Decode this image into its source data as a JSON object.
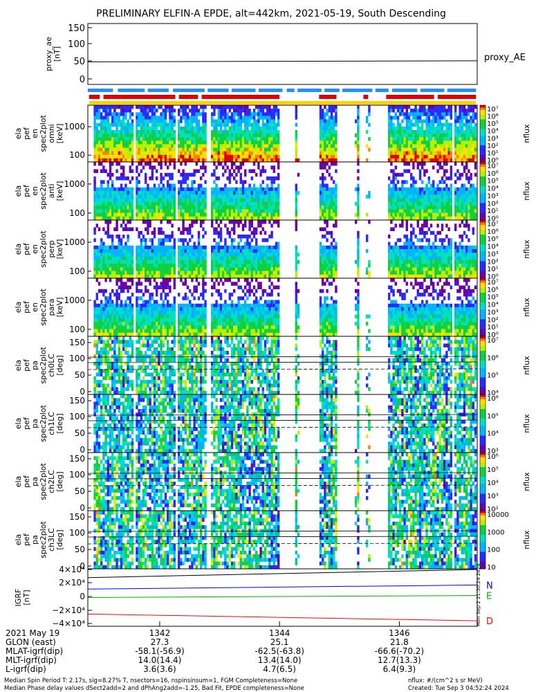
{
  "title": "PRELIMINARY ELFIN-A EPDE, alt=442km, 2021-05-19, South Descending",
  "chart_data": [
    {
      "type": "line",
      "ylabel": "proxy_ae [nT]",
      "ylim": [
        0,
        150
      ],
      "yticks": [
        "150",
        "100",
        "50",
        "0"
      ],
      "series": [
        {
          "name": "proxy_AE",
          "x": [
            1340.8,
            1347.3
          ],
          "values": [
            50,
            53
          ]
        }
      ]
    },
    {
      "type": "heatmap",
      "ylabel": [
        "ela",
        "pef",
        "en",
        "spec2plot",
        "omni",
        "[keV]"
      ],
      "yticks": [
        "1000",
        "100"
      ],
      "colorbar_label": "nflux",
      "colorbar_ticks": [
        "10⁷",
        "10⁶",
        "10⁵",
        "10⁴",
        "10³",
        "10²",
        "10¹",
        "10⁰"
      ]
    },
    {
      "type": "heatmap",
      "ylabel": [
        "ela",
        "pef",
        "en",
        "spec2plot",
        "anti",
        "[keV]"
      ],
      "yticks": [
        "1000",
        "100"
      ],
      "colorbar_label": "nflux",
      "colorbar_ticks": [
        "10⁷",
        "10⁶",
        "10⁵",
        "10⁴",
        "10³",
        "10²",
        "10¹",
        "10⁰"
      ]
    },
    {
      "type": "heatmap",
      "ylabel": [
        "ela",
        "pef",
        "en",
        "spec2plot",
        "perp",
        "[keV]"
      ],
      "yticks": [
        "1000",
        "100"
      ],
      "colorbar_label": "nflux",
      "colorbar_ticks": [
        "10⁷",
        "10⁶",
        "10⁵",
        "10⁴",
        "10³",
        "10²",
        "10¹",
        "10⁰"
      ]
    },
    {
      "type": "heatmap",
      "ylabel": [
        "ela",
        "pef",
        "en",
        "spec2plot",
        "para",
        "[keV]"
      ],
      "yticks": [
        "1000",
        "100"
      ],
      "colorbar_label": "nflux",
      "colorbar_ticks": [
        "10⁷",
        "10⁶",
        "10⁵",
        "10⁴",
        "10³",
        "10²",
        "10¹",
        "10⁰"
      ]
    },
    {
      "type": "heatmap",
      "ylabel": [
        "ela",
        "pef",
        "pa",
        "spec2plot",
        "ch0LC",
        "[deg]"
      ],
      "yticks": [
        "150",
        "100",
        "50",
        "0"
      ],
      "colorbar_label": "nflux",
      "colorbar_ticks": [
        "10⁷",
        "10⁶",
        "10⁵",
        "10⁴"
      ]
    },
    {
      "type": "heatmap",
      "ylabel": [
        "ela",
        "pef",
        "pa",
        "spec2plot",
        "ch1LC",
        "[deg]"
      ],
      "yticks": [
        "150",
        "100",
        "50",
        "0"
      ],
      "colorbar_label": "nflux",
      "colorbar_ticks": [
        "10⁶",
        "10⁵",
        "10⁴",
        "10³"
      ]
    },
    {
      "type": "heatmap",
      "ylabel": [
        "ela",
        "pef",
        "pa",
        "spec2plot",
        "ch2LC",
        "[deg]"
      ],
      "yticks": [
        "150",
        "100",
        "50",
        "0"
      ],
      "colorbar_label": "nflux",
      "colorbar_ticks": [
        "10⁶",
        "10⁵",
        "10⁴",
        "10³",
        "10²"
      ]
    },
    {
      "type": "heatmap",
      "ylabel": [
        "ela",
        "pef",
        "pa",
        "spec2plot",
        "ch3LC",
        "[deg]"
      ],
      "yticks": [
        "150",
        "100",
        "50",
        "0"
      ],
      "colorbar_label": "nflux",
      "colorbar_ticks": [
        "10000",
        "1000",
        "100",
        "10"
      ]
    },
    {
      "type": "line",
      "ylabel": "IGRF [nT]",
      "yticks": [
        "4×10⁴",
        "2×10⁴",
        "0",
        "−2×10⁴",
        "−4×10⁴"
      ],
      "ylim": [
        -45000,
        45000
      ],
      "series": [
        {
          "name": "N",
          "color": "#0000ff",
          "x": [
            1340.8,
            1347.3
          ],
          "values": [
            11000,
            17000
          ]
        },
        {
          "name": "E",
          "color": "#00b000",
          "x": [
            1340.8,
            1347.3
          ],
          "values": [
            -1500,
            1500
          ]
        },
        {
          "name": "D",
          "color": "#ff0000",
          "x": [
            1340.8,
            1347.3
          ],
          "values": [
            -26000,
            -36000
          ]
        },
        {
          "name": "",
          "color": "#000000",
          "x": [
            1340.8,
            1347.3
          ],
          "values": [
            28000,
            40000
          ]
        }
      ]
    }
  ],
  "side_stamp": "Mon Sep  2 21:30:24 2024",
  "xaxis": {
    "ticks": [
      "1342",
      "1344",
      "1346"
    ],
    "rows": [
      {
        "label": "2021 May 19",
        "values": [
          "1342",
          "1344",
          "1346"
        ]
      },
      {
        "label": "GLON (east)",
        "values": [
          "27.3",
          "25.1",
          "21.8"
        ]
      },
      {
        "label": "MLAT-igrf(dip)",
        "values": [
          "-58.1(-56.9)",
          "-62.5(-63.8)",
          "-66.6(-70.2)"
        ]
      },
      {
        "label": "MLT-igrf(dip)",
        "values": [
          "14.0(14.4)",
          "13.4(14.0)",
          "12.7(13.3)"
        ]
      },
      {
        "label": "L-igrf(dip)",
        "values": [
          "3.6(3.6)",
          "4.7(6.5)",
          "6.4(9.3)"
        ]
      }
    ]
  },
  "footer": {
    "line1": "Median Spin Period T: 2.17s, sig=8.27% T, nsectors=16, nspinsinsum=1, FGM Completeness=None",
    "line2": "Median Phase delay values dSect2add=2 and dPhAng2add=-1.25, Bad Fit, EPDE completeness=None",
    "units": "nflux: #/(cm^2 s sr MeV)",
    "created": "Created: Tue Sep  3 04:52:24 2024"
  },
  "colors": {
    "bar_blue": "#1e90ff",
    "bar_red": "#e00000",
    "bar_yellow": "#ffd200"
  }
}
